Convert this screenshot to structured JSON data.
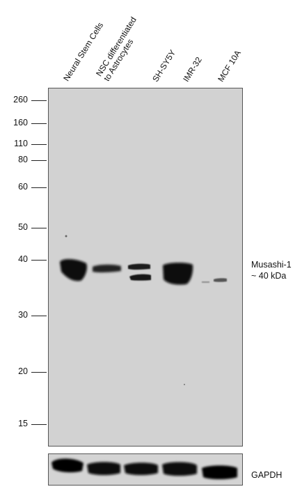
{
  "lanes": [
    {
      "id": "nsc",
      "label_lines": [
        "Neural Stem Cells"
      ]
    },
    {
      "id": "astro",
      "label_lines": [
        "NSC differentiated",
        "to Astrocytes"
      ]
    },
    {
      "id": "shsy5y",
      "label_lines": [
        "SH-SY5Y"
      ]
    },
    {
      "id": "imr32",
      "label_lines": [
        "IMR-32"
      ]
    },
    {
      "id": "mcf10a",
      "label_lines": [
        "MCF 10A"
      ]
    }
  ],
  "marker_labels": [
    "260",
    "160",
    "110",
    "80",
    "60",
    "50",
    "40",
    "30",
    "20",
    "15"
  ],
  "target": {
    "name": "Musashi-1",
    "size": "~ 40 kDa"
  },
  "loading_control": {
    "name": "GAPDH"
  }
}
